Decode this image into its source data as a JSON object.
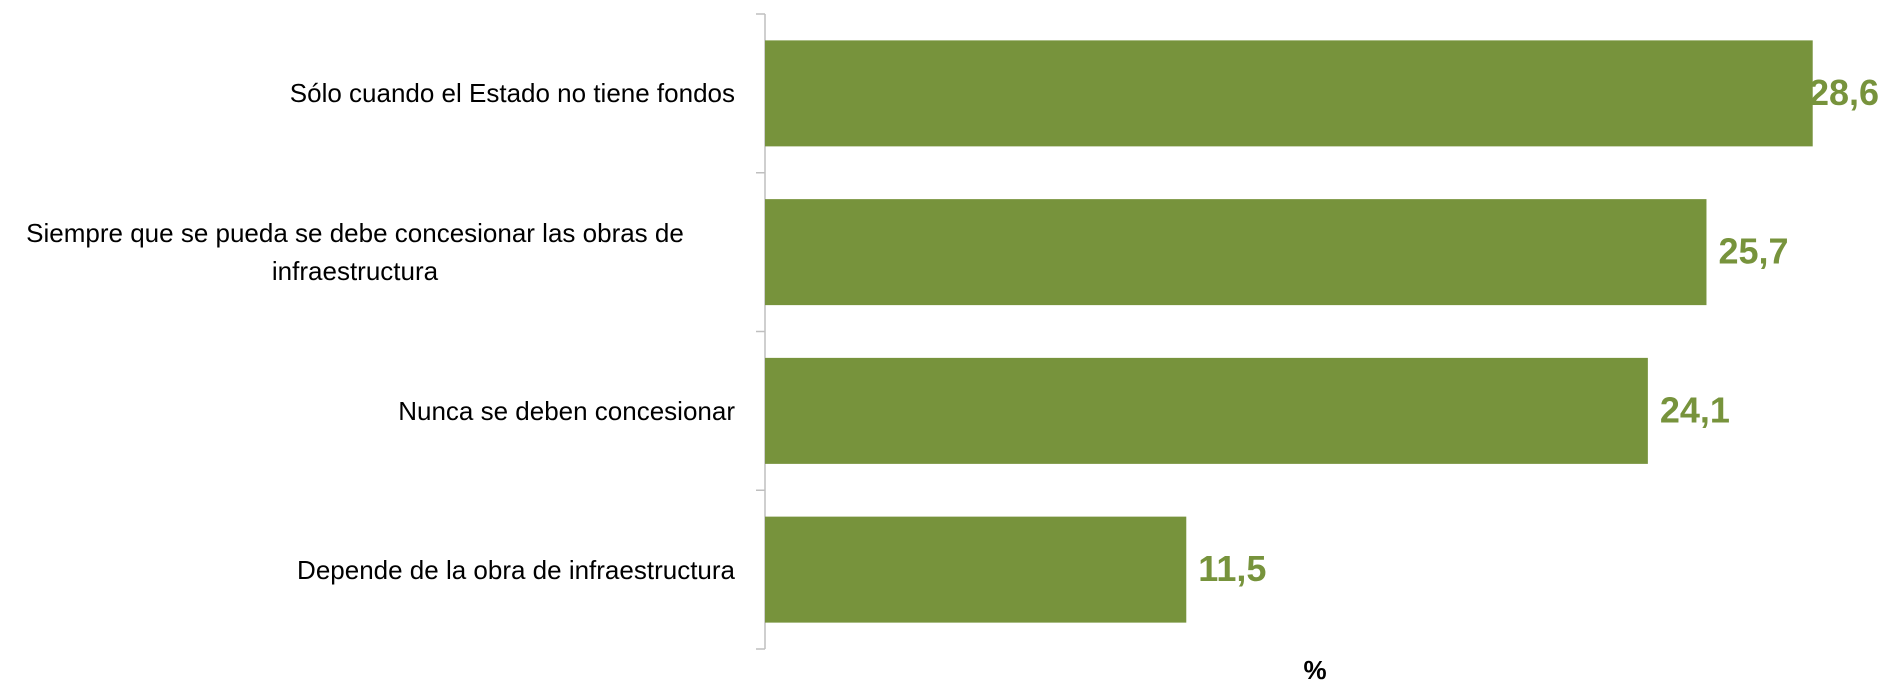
{
  "chart_data": {
    "type": "bar",
    "orientation": "horizontal",
    "categories": [
      "Sólo cuando el Estado no tiene fondos",
      "Siempre que se pueda se debe concesionar las obras de infraestructura",
      "Nunca se deben concesionar",
      "Depende de la obra de infraestructura"
    ],
    "values": [
      28.6,
      25.7,
      24.1,
      11.5
    ],
    "value_labels": [
      "28,6",
      "25,7",
      "24,1",
      "11,5"
    ],
    "color": "#77933c",
    "xlim": [
      0,
      30
    ],
    "xlabel": "%"
  }
}
